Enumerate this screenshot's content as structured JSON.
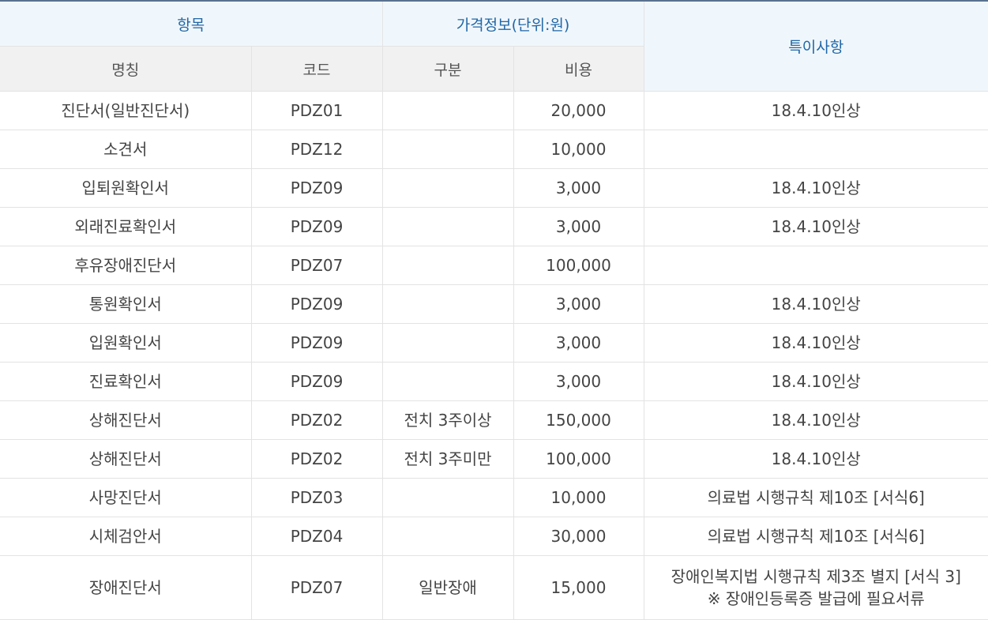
{
  "header": {
    "item_group": "항목",
    "price_group": "가격정보(단위:원)",
    "remarks": "특이사항",
    "name": "명칭",
    "code": "코드",
    "category": "구분",
    "cost": "비용"
  },
  "rows": [
    {
      "name": "진단서(일반진단서)",
      "code": "PDZ01",
      "category": "",
      "cost": "20,000",
      "remarks": [
        "18.4.10인상"
      ]
    },
    {
      "name": "소견서",
      "code": "PDZ12",
      "category": "",
      "cost": "10,000",
      "remarks": [
        ""
      ]
    },
    {
      "name": "입퇴원확인서",
      "code": "PDZ09",
      "category": "",
      "cost": "3,000",
      "remarks": [
        "18.4.10인상"
      ]
    },
    {
      "name": "외래진료확인서",
      "code": "PDZ09",
      "category": "",
      "cost": "3,000",
      "remarks": [
        "18.4.10인상"
      ]
    },
    {
      "name": "후유장애진단서",
      "code": "PDZ07",
      "category": "",
      "cost": "100,000",
      "remarks": [
        ""
      ]
    },
    {
      "name": "통원확인서",
      "code": "PDZ09",
      "category": "",
      "cost": "3,000",
      "remarks": [
        "18.4.10인상"
      ]
    },
    {
      "name": "입원확인서",
      "code": "PDZ09",
      "category": "",
      "cost": "3,000",
      "remarks": [
        "18.4.10인상"
      ]
    },
    {
      "name": "진료확인서",
      "code": "PDZ09",
      "category": "",
      "cost": "3,000",
      "remarks": [
        "18.4.10인상"
      ]
    },
    {
      "name": "상해진단서",
      "code": "PDZ02",
      "category": "전치 3주이상",
      "cost": "150,000",
      "remarks": [
        "18.4.10인상"
      ]
    },
    {
      "name": "상해진단서",
      "code": "PDZ02",
      "category": "전치 3주미만",
      "cost": "100,000",
      "remarks": [
        "18.4.10인상"
      ]
    },
    {
      "name": "사망진단서",
      "code": "PDZ03",
      "category": "",
      "cost": "10,000",
      "remarks": [
        "의료법 시행규칙 제10조 [서식6]"
      ]
    },
    {
      "name": "시체검안서",
      "code": "PDZ04",
      "category": "",
      "cost": "30,000",
      "remarks": [
        "의료법 시행규칙 제10조 [서식6]"
      ]
    },
    {
      "name": "장애진단서",
      "code": "PDZ07",
      "category": "일반장애",
      "cost": "15,000",
      "remarks": [
        "장애인복지법 시행규칙 제3조 별지 [서식 3]",
        "※ 장애인등록증 발급에 필요서류"
      ]
    }
  ]
}
